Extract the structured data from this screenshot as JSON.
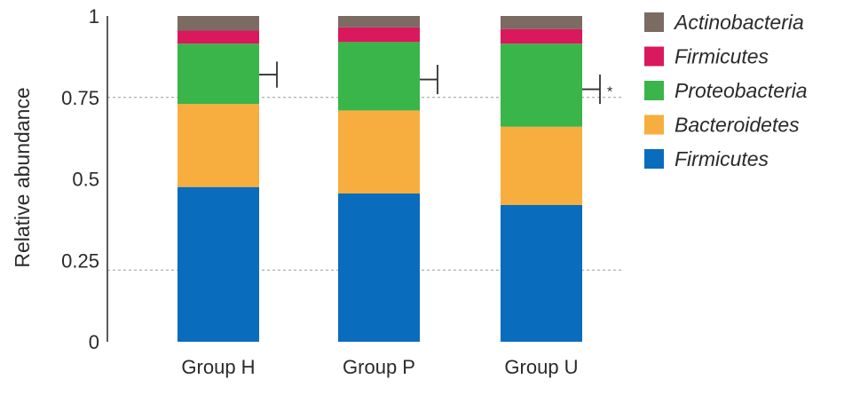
{
  "chart_data": {
    "type": "bar",
    "stacked": true,
    "ylabel": "Relative abundance",
    "ylim": [
      0,
      1
    ],
    "yticks": [
      "0",
      "0.25",
      "0.5",
      "0.75",
      "1"
    ],
    "ytick_values": [
      0,
      0.25,
      0.5,
      0.75,
      1
    ],
    "grid": "horizontal dashed at 0.22 and 0.75",
    "grid_values": [
      0.22,
      0.75
    ],
    "legend_position": "right",
    "categories": [
      "Group H",
      "Group P",
      "Group U"
    ],
    "series": [
      {
        "name": "Firmicutes",
        "color": "#0a6cbd",
        "values": [
          0.475,
          0.455,
          0.42
        ]
      },
      {
        "name": "Bacteroidetes",
        "color": "#f7ae3e",
        "values": [
          0.255,
          0.255,
          0.24
        ]
      },
      {
        "name": "Proteobacteria",
        "color": "#3ab54a",
        "values": [
          0.185,
          0.21,
          0.255
        ]
      },
      {
        "name": "Firmicutes",
        "color": "#d9195b",
        "values": [
          0.04,
          0.045,
          0.045
        ]
      },
      {
        "name": "Actinobacteria",
        "color": "#7b6b62",
        "values": [
          0.045,
          0.035,
          0.04
        ]
      }
    ],
    "legend_order": [
      4,
      3,
      2,
      1,
      0
    ],
    "significance": [
      {
        "category_index": 0,
        "low": 0.78,
        "high": 0.86,
        "label": ""
      },
      {
        "category_index": 1,
        "low": 0.76,
        "high": 0.85,
        "label": ""
      },
      {
        "category_index": 2,
        "low": 0.73,
        "high": 0.82,
        "label": "*"
      }
    ]
  }
}
